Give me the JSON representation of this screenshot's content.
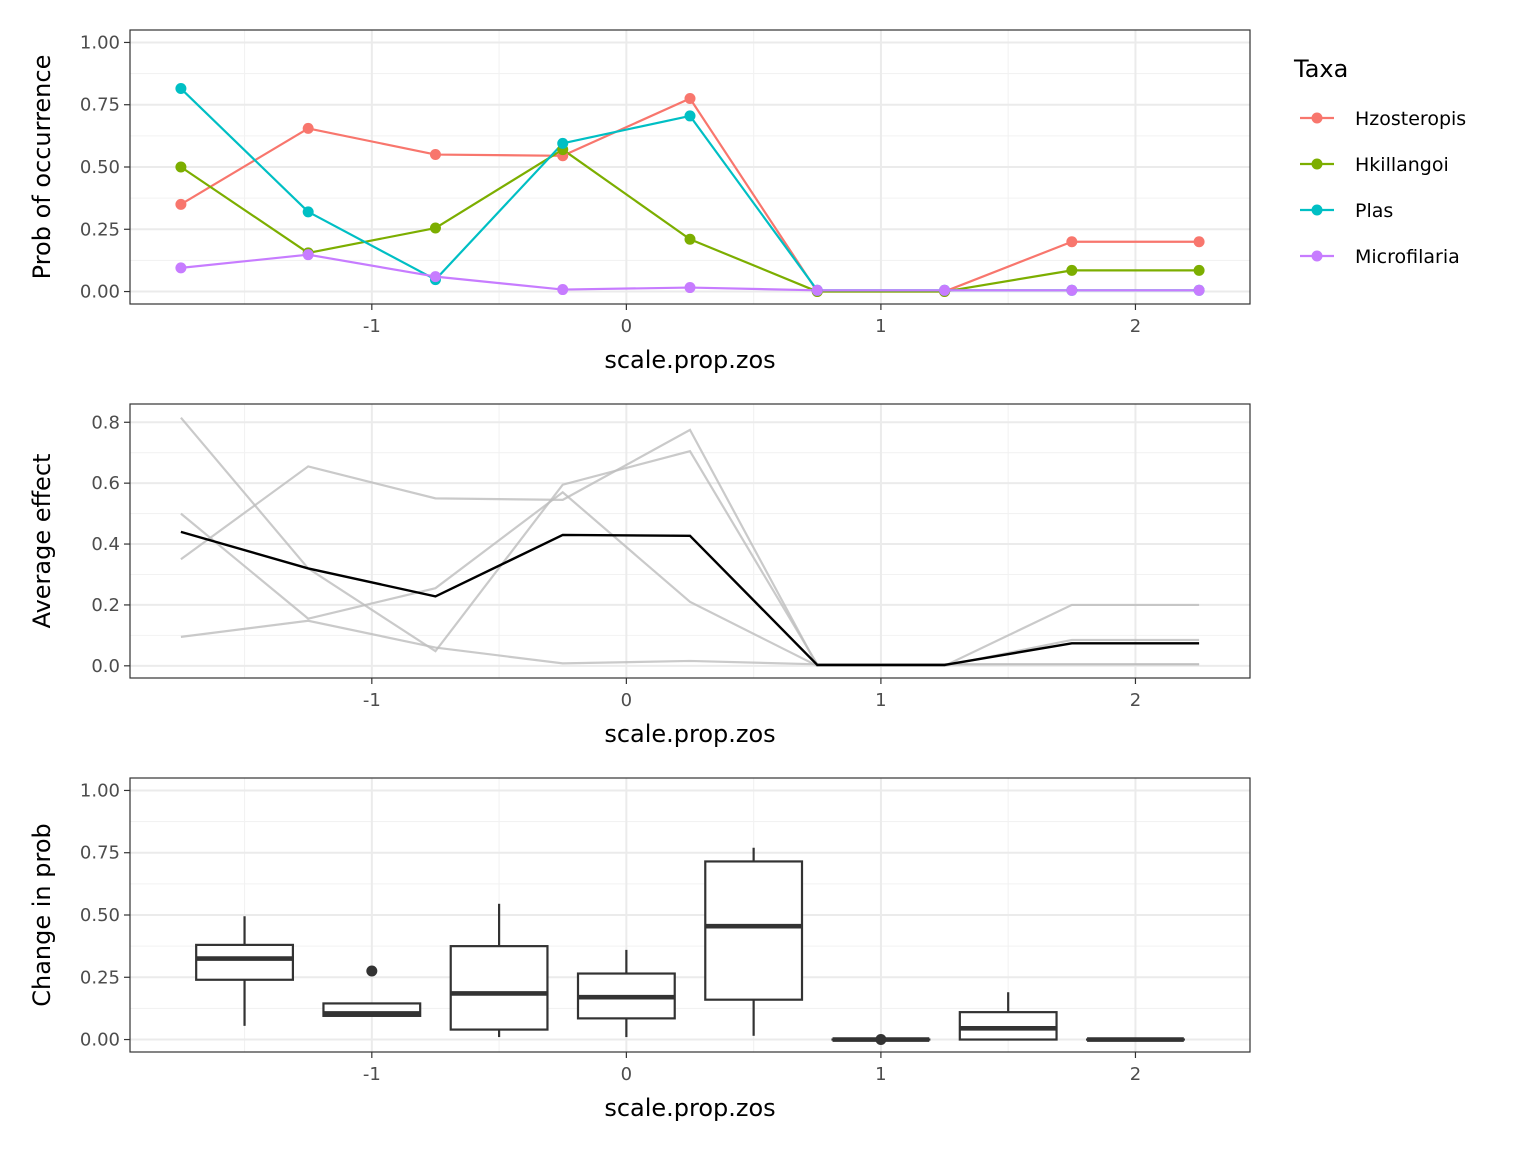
{
  "chart_data": [
    {
      "type": "line",
      "xlabel": "scale.prop.zos",
      "ylabel": "Prob of occurrence",
      "xlim": [
        -1.95,
        2.45
      ],
      "ylim": [
        -0.05,
        1.05
      ],
      "xticks": [
        -1,
        0,
        1,
        2
      ],
      "xtick_labels": [
        "-1",
        "0",
        "1",
        "2"
      ],
      "yticks": [
        0,
        0.25,
        0.5,
        0.75,
        1.0
      ],
      "ytick_labels": [
        "0.00",
        "0.25",
        "0.50",
        "0.75",
        "1.00"
      ],
      "grid": true,
      "legend": {
        "title": "Taxa",
        "placement": "right"
      },
      "x": [
        -1.75,
        -1.25,
        -0.75,
        -0.25,
        0.25,
        0.75,
        1.25,
        1.75,
        2.25
      ],
      "series": [
        {
          "name": "Hzosteropis",
          "color": "#F8766D",
          "values": [
            0.35,
            0.655,
            0.55,
            0.545,
            0.775,
            0.0,
            0.0,
            0.2,
            0.2
          ]
        },
        {
          "name": "Hkillangoi",
          "color": "#7CAE00",
          "values": [
            0.5,
            0.155,
            0.255,
            0.57,
            0.21,
            0.0,
            0.0,
            0.085,
            0.085
          ]
        },
        {
          "name": "Plas",
          "color": "#00BFC4",
          "values": [
            0.815,
            0.32,
            0.048,
            0.595,
            0.705,
            0.005,
            0.005,
            0.005,
            0.005
          ]
        },
        {
          "name": "Microfilaria",
          "color": "#C77CFF",
          "values": [
            0.095,
            0.148,
            0.06,
            0.008,
            0.016,
            0.005,
            0.005,
            0.005,
            0.005
          ]
        }
      ]
    },
    {
      "type": "line",
      "xlabel": "scale.prop.zos",
      "ylabel": "Average effect",
      "xlim": [
        -1.95,
        2.45
      ],
      "ylim": [
        -0.04,
        0.86
      ],
      "xticks": [
        -1,
        0,
        1,
        2
      ],
      "xtick_labels": [
        "-1",
        "0",
        "1",
        "2"
      ],
      "yticks": [
        0,
        0.2,
        0.4,
        0.6,
        0.8
      ],
      "ytick_labels": [
        "0.0",
        "0.2",
        "0.4",
        "0.6",
        "0.8"
      ],
      "grid": true,
      "x": [
        -1.75,
        -1.25,
        -0.75,
        -0.25,
        0.25,
        0.75,
        1.25,
        1.75,
        2.25
      ],
      "background_color": "#bdbdbd",
      "average_color": "#000000",
      "background_series": [
        [
          0.35,
          0.655,
          0.55,
          0.545,
          0.775,
          0.0,
          0.0,
          0.2,
          0.2
        ],
        [
          0.5,
          0.155,
          0.255,
          0.57,
          0.21,
          0.0,
          0.0,
          0.085,
          0.085
        ],
        [
          0.815,
          0.32,
          0.048,
          0.595,
          0.705,
          0.005,
          0.005,
          0.005,
          0.005
        ],
        [
          0.095,
          0.148,
          0.06,
          0.008,
          0.016,
          0.005,
          0.005,
          0.005,
          0.005
        ]
      ],
      "average": [
        0.44,
        0.32,
        0.228,
        0.43,
        0.427,
        0.003,
        0.003,
        0.074,
        0.074
      ]
    },
    {
      "type": "box",
      "xlabel": "scale.prop.zos",
      "ylabel": "Change in prob",
      "xlim": [
        -1.95,
        2.45
      ],
      "ylim": [
        -0.05,
        1.05
      ],
      "xticks": [
        -1,
        0,
        1,
        2
      ],
      "xtick_labels": [
        "-1",
        "0",
        "1",
        "2"
      ],
      "yticks": [
        0,
        0.25,
        0.5,
        0.75,
        1.0
      ],
      "ytick_labels": [
        "0.00",
        "0.25",
        "0.50",
        "0.75",
        "1.00"
      ],
      "grid": true,
      "box_color": "#333333",
      "boxes": [
        {
          "x": -1.5,
          "whisker_low": 0.055,
          "q1": 0.24,
          "median": 0.325,
          "q3": 0.38,
          "whisker_high": 0.495,
          "outliers": []
        },
        {
          "x": -1.0,
          "whisker_low": 0.095,
          "q1": 0.095,
          "median": 0.105,
          "q3": 0.145,
          "whisker_high": 0.145,
          "outliers": [
            0.275
          ]
        },
        {
          "x": -0.5,
          "whisker_low": 0.01,
          "q1": 0.04,
          "median": 0.185,
          "q3": 0.375,
          "whisker_high": 0.545,
          "outliers": []
        },
        {
          "x": 0.0,
          "whisker_low": 0.01,
          "q1": 0.085,
          "median": 0.17,
          "q3": 0.265,
          "whisker_high": 0.36,
          "outliers": []
        },
        {
          "x": 0.5,
          "whisker_low": 0.015,
          "q1": 0.16,
          "median": 0.455,
          "q3": 0.715,
          "whisker_high": 0.77,
          "outliers": []
        },
        {
          "x": 1.0,
          "whisker_low": 0.0,
          "q1": 0.0,
          "median": 0.0,
          "q3": 0.0,
          "whisker_high": 0.0,
          "outliers": [
            0.0
          ]
        },
        {
          "x": 1.5,
          "whisker_low": 0.0,
          "q1": 0.0,
          "median": 0.045,
          "q3": 0.11,
          "whisker_high": 0.19,
          "outliers": []
        },
        {
          "x": 2.0,
          "whisker_low": 0.0,
          "q1": 0.0,
          "median": 0.0,
          "q3": 0.0,
          "whisker_high": 0.0,
          "outliers": []
        }
      ]
    }
  ]
}
